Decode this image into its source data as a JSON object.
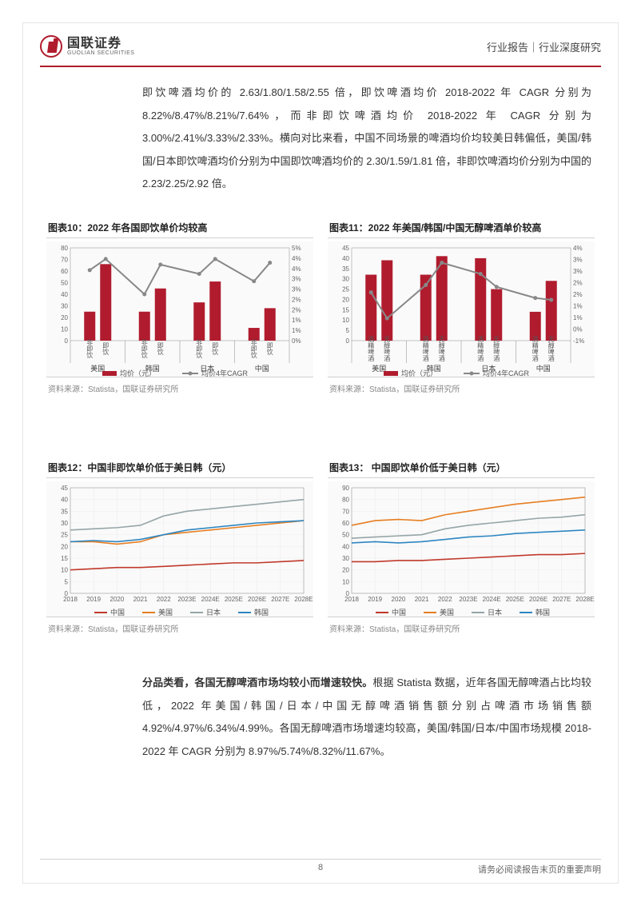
{
  "header": {
    "logo_cn": "国联证券",
    "logo_en": "GUOLIAN SECURITIES",
    "right": "行业报告｜行业深度研究"
  },
  "paragraph1": "即饮啤酒均价的 2.63/1.80/1.58/2.55 倍，即饮啤酒均价 2018-2022 年 CAGR 分别为 8.22%/8.47%/8.21%/7.64%，而非即饮啤酒均价 2018-2022 年 CAGR 分别为 3.00%/2.41%/3.33%/2.33%。横向对比来看，中国不同场景的啤酒均价均较美日韩偏低，美国/韩国/日本即饮啤酒均价分别为中国即饮啤酒均价的 2.30/1.59/1.81 倍，非即饮啤酒均价分别为中国的 2.23/2.25/2.92 倍。",
  "paragraph2_bold": "分品类看，各国无醇啤酒市场均较小而增速较快。",
  "paragraph2_rest": "根据 Statista 数据，近年各国无醇啤酒占比均较低，2022 年美国/韩国/日本/中国无醇啤酒销售额分别占啤酒市场销售额 4.92%/4.97%/6.34%/4.99%。各国无醇啤酒市场增速均较高，美国/韩国/日本/中国市场规模 2018-2022 年 CAGR 分别为 8.97%/5.74%/8.32%/11.67%。",
  "footer": {
    "page": "8",
    "disclaimer": "请务必阅读报告末页的重要声明"
  },
  "colors": {
    "brand_red": "#b01c2e",
    "grey_line": "#888888",
    "china": "#c0392b",
    "usa": "#e67e22",
    "japan": "#95a5a6",
    "korea": "#2e86c1"
  },
  "chart10": {
    "title": "图表10：2022 年各国即饮单价均较高",
    "source": "资料来源：Statista，国联证券研究所",
    "type": "bar+line",
    "countries": [
      "美国",
      "韩国",
      "日本",
      "中国"
    ],
    "subcats": [
      "非即饮",
      "即饮"
    ],
    "bars": [
      25,
      66,
      25,
      45,
      33,
      51,
      11,
      28
    ],
    "cagr_pct": [
      3.8,
      4.4,
      2.5,
      4.1,
      3.6,
      4.4,
      3.2,
      4.2
    ],
    "yleft_ticks": [
      0,
      10,
      20,
      30,
      40,
      50,
      60,
      70,
      80
    ],
    "yright_ticks": [
      "0%",
      "1%",
      "1%",
      "2%",
      "2%",
      "3%",
      "3%",
      "4%",
      "4%",
      "5%"
    ],
    "yleft_max": 80,
    "yright_max": 5,
    "legend": [
      "均价（元）",
      "均价4年CAGR"
    ]
  },
  "chart11": {
    "title": "图表11：2022 年美国/韩国/中国无醇啤酒单价较高",
    "source": "资料来源：Statista，国联证券研究所",
    "type": "bar+line",
    "countries": [
      "美国",
      "韩国",
      "日本",
      "中国"
    ],
    "subcats": [
      "酒精啤酒",
      "无醇啤酒"
    ],
    "bars": [
      32,
      39,
      32,
      41,
      40,
      25,
      14,
      29
    ],
    "cagr_pct": [
      1.6,
      0.2,
      2.0,
      3.2,
      2.6,
      1.9,
      1.3,
      1.2
    ],
    "yleft_ticks": [
      0,
      5,
      10,
      15,
      20,
      25,
      30,
      35,
      40,
      45
    ],
    "yright_ticks": [
      "-1%",
      "0%",
      "1%",
      "1%",
      "2%",
      "2%",
      "3%",
      "3%",
      "4%"
    ],
    "yleft_max": 45,
    "yright_min": -1,
    "yright_max": 4,
    "legend": [
      "均价（元）",
      "均价4年CAGR"
    ]
  },
  "chart12": {
    "title": "图表12：中国非即饮单价低于美日韩（元）",
    "source": "资料来源：Statista，国联证券研究所",
    "type": "line",
    "x": [
      "2018",
      "2019",
      "2020",
      "2021",
      "2022",
      "2023E",
      "2024E",
      "2025E",
      "2026E",
      "2027E",
      "2028E"
    ],
    "ymax": 45,
    "ytick_step": 5,
    "series": {
      "china": [
        10,
        10.5,
        11,
        11,
        11.5,
        12,
        12.5,
        13,
        13,
        13.5,
        14
      ],
      "usa": [
        22,
        22,
        21,
        22,
        25,
        26,
        27,
        28,
        29,
        30,
        31
      ],
      "japan": [
        27,
        27.5,
        28,
        29,
        33,
        35,
        36,
        37,
        38,
        39,
        40
      ],
      "korea": [
        22,
        22.5,
        22,
        23,
        25,
        27,
        28,
        29,
        30,
        30.5,
        31
      ]
    },
    "legend": [
      "中国",
      "美国",
      "日本",
      "韩国"
    ]
  },
  "chart13": {
    "title": "图表13： 中国即饮单价低于美日韩（元）",
    "source": "资料来源：Statista，国联证券研究所",
    "type": "line",
    "x": [
      "2018",
      "2019",
      "2020",
      "2021",
      "2022",
      "2023E",
      "2024E",
      "2025E",
      "2026E",
      "2027E",
      "2028E"
    ],
    "ymax": 90,
    "ytick_step": 10,
    "series": {
      "china": [
        27,
        27,
        28,
        28,
        29,
        30,
        31,
        32,
        33,
        33,
        34
      ],
      "usa": [
        58,
        62,
        63,
        62,
        67,
        70,
        73,
        76,
        78,
        80,
        82
      ],
      "japan": [
        47,
        48,
        49,
        50,
        55,
        58,
        60,
        62,
        64,
        65,
        67
      ],
      "korea": [
        43,
        44,
        43,
        44,
        46,
        48,
        49,
        51,
        52,
        53,
        54
      ]
    },
    "legend": [
      "中国",
      "美国",
      "日本",
      "韩国"
    ]
  }
}
